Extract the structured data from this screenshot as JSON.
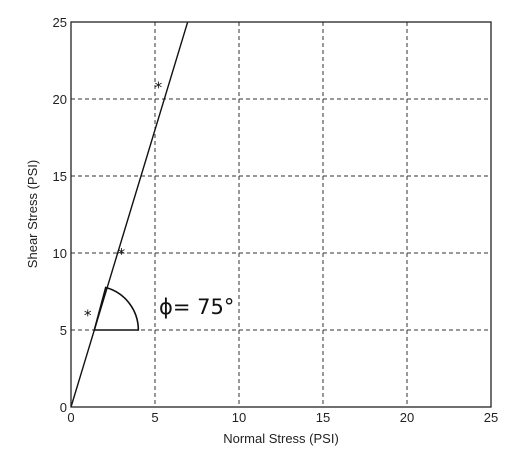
{
  "chart_data": {
    "type": "scatter",
    "title": "",
    "xlabel": "Normal Stress (PSI)",
    "ylabel": "Shear Stress (PSI)",
    "xlim": [
      0,
      25
    ],
    "ylim": [
      0,
      25
    ],
    "xticks": [
      "0",
      "5",
      "10",
      "15",
      "20",
      "25"
    ],
    "yticks": [
      "0",
      "5",
      "10",
      "15",
      "20",
      "25"
    ],
    "grid": true,
    "points": [
      {
        "x": 1.0,
        "y": 6.0
      },
      {
        "x": 3.0,
        "y": 10.0
      },
      {
        "x": 5.2,
        "y": 20.8
      }
    ],
    "fit_line": {
      "slope": 3.6,
      "intercept": 0,
      "x_range": [
        0,
        6.95
      ]
    },
    "annotation": {
      "text": "ϕ= 75°",
      "angle_deg": 75
    }
  }
}
